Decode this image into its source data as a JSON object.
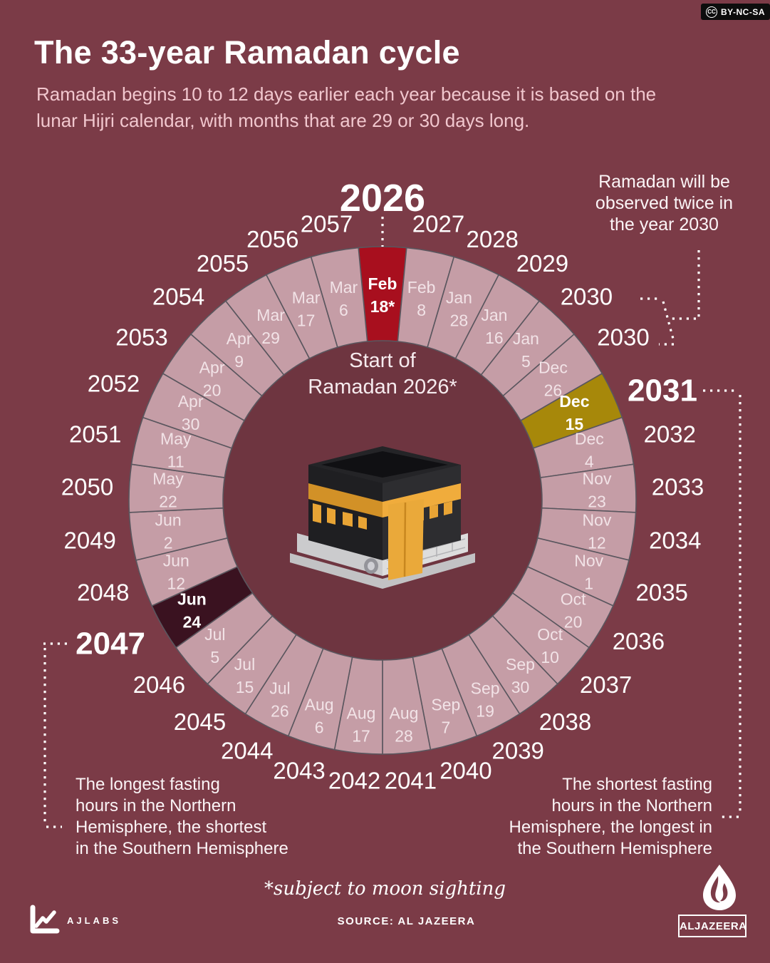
{
  "meta": {
    "cc_symbol": "CC",
    "license": "BY-NC-SA"
  },
  "header": {
    "title": "The 33-year Ramadan cycle",
    "subtitle": "Ramadan begins 10 to 12 days earlier each year because it is based on the\nlunar Hijri calendar, with months that are 29 or 30 days long."
  },
  "wheel": {
    "center_caption": "Start of\nRamadan 2026*",
    "kaaba_icon": "kaaba-3d-illustration",
    "segments": [
      {
        "year": "2026",
        "month": "Feb",
        "day": "18*",
        "highlight": "red"
      },
      {
        "year": "2027",
        "month": "Feb",
        "day": "8"
      },
      {
        "year": "2028",
        "month": "Jan",
        "day": "28"
      },
      {
        "year": "2029",
        "month": "Jan",
        "day": "16"
      },
      {
        "year": "2030",
        "month": "Jan",
        "day": "5"
      },
      {
        "year": "2030",
        "month": "Dec",
        "day": "26"
      },
      {
        "year": "2031",
        "month": "Dec",
        "day": "15",
        "highlight": "gold"
      },
      {
        "year": "2032",
        "month": "Dec",
        "day": "4"
      },
      {
        "year": "2033",
        "month": "Nov",
        "day": "23"
      },
      {
        "year": "2034",
        "month": "Nov",
        "day": "12"
      },
      {
        "year": "2035",
        "month": "Nov",
        "day": "1"
      },
      {
        "year": "2036",
        "month": "Oct",
        "day": "20"
      },
      {
        "year": "2037",
        "month": "Oct",
        "day": "10"
      },
      {
        "year": "2038",
        "month": "Sep",
        "day": "30"
      },
      {
        "year": "2039",
        "month": "Sep",
        "day": "19"
      },
      {
        "year": "2040",
        "month": "Sep",
        "day": "7"
      },
      {
        "year": "2041",
        "month": "Aug",
        "day": "28"
      },
      {
        "year": "2042",
        "month": "Aug",
        "day": "17"
      },
      {
        "year": "2043",
        "month": "Aug",
        "day": "6"
      },
      {
        "year": "2044",
        "month": "Jul",
        "day": "26"
      },
      {
        "year": "2045",
        "month": "Jul",
        "day": "15"
      },
      {
        "year": "2046",
        "month": "Jul",
        "day": "5"
      },
      {
        "year": "2047",
        "month": "Jun",
        "day": "24",
        "highlight": "dark"
      },
      {
        "year": "2048",
        "month": "Jun",
        "day": "12"
      },
      {
        "year": "2049",
        "month": "Jun",
        "day": "2"
      },
      {
        "year": "2050",
        "month": "May",
        "day": "22"
      },
      {
        "year": "2051",
        "month": "May",
        "day": "11"
      },
      {
        "year": "2052",
        "month": "Apr",
        "day": "30"
      },
      {
        "year": "2053",
        "month": "Apr",
        "day": "20"
      },
      {
        "year": "2054",
        "month": "Apr",
        "day": "9"
      },
      {
        "year": "2055",
        "month": "Mar",
        "day": "29"
      },
      {
        "year": "2056",
        "month": "Mar",
        "day": "17"
      },
      {
        "year": "2057",
        "month": "Mar",
        "day": "6"
      }
    ]
  },
  "annotations": {
    "twice_2030": "Ramadan will be\nobserved twice in\nthe year 2030",
    "longest_fasting": "The longest fasting\nhours in the Northern\nHemisphere, the shortest\nin the Southern Hemisphere",
    "shortest_fasting": "The shortest fasting\nhours in the Northern\nHemisphere, the longest in\nthe Southern Hemisphere"
  },
  "footer": {
    "note": "*subject to moon sighting",
    "source": "SOURCE: AL JAZEERA",
    "ajlabs": "AJLABS",
    "aljazeera": "ALJAZEERA"
  },
  "colors": {
    "background": "#7b3b47",
    "ring": "#c59da6",
    "inner_disc": "#6e3540",
    "segment_border": "#5a565e",
    "highlight_red": "#a80f1e",
    "highlight_gold": "#a7880a",
    "highlight_dark": "#3a1220",
    "date_text": "#f2e3e7",
    "year_text": "#ffffff",
    "subtitle_pink": "#f1c7ce"
  }
}
